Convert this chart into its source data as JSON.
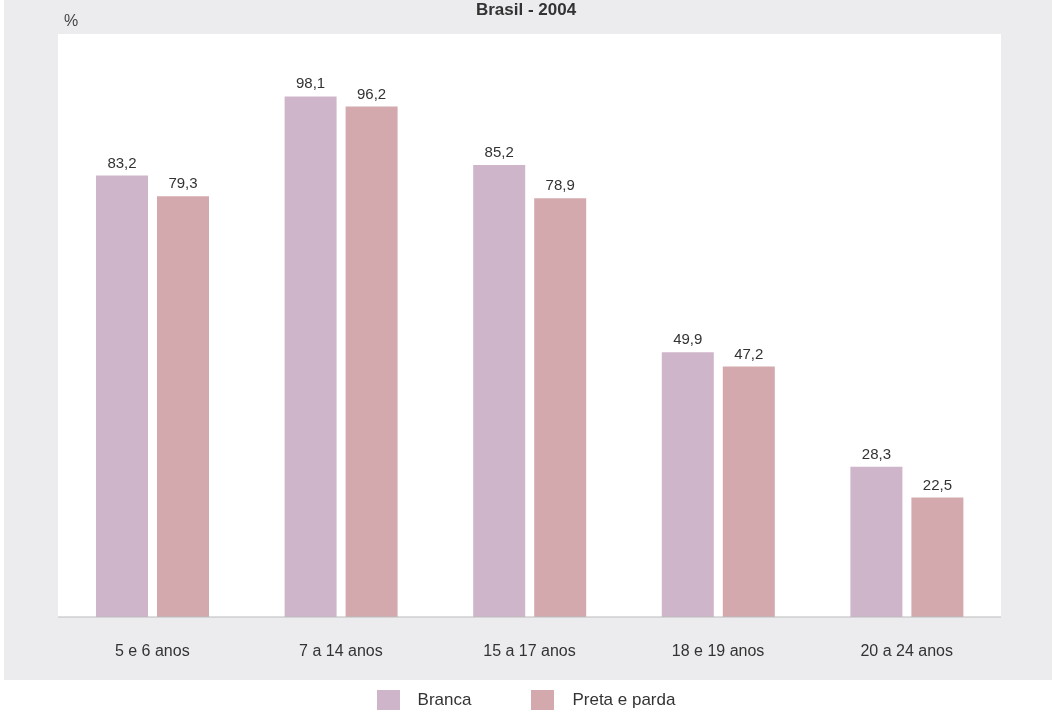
{
  "chart_data": {
    "type": "bar",
    "title": "Brasil - 2004",
    "ylabel": "%",
    "categories": [
      "5 e 6 anos",
      "7 a 14 anos",
      "15 a 17 anos",
      "18 e 19 anos",
      "20 a 24 anos"
    ],
    "series": [
      {
        "name": "Branca",
        "color": "#cfb5c9",
        "values": [
          83.2,
          98.1,
          85.2,
          49.9,
          28.3
        ],
        "value_labels": [
          "83,2",
          "98,1",
          "85,2",
          "49,9",
          "28,3"
        ]
      },
      {
        "name": "Preta e parda",
        "color": "#d4a9ad",
        "values": [
          79.3,
          96.2,
          78.9,
          47.2,
          22.5
        ],
        "value_labels": [
          "79,3",
          "96,2",
          "78,9",
          "47,2",
          "22,5"
        ]
      }
    ],
    "grid": false,
    "legend": "bottom"
  }
}
